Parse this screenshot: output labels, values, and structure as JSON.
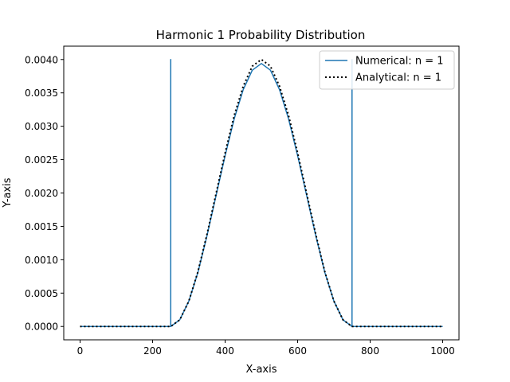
{
  "chart_data": {
    "type": "line",
    "title": "Harmonic 1 Probability Distribution",
    "xlabel": "X-axis",
    "ylabel": "Y-axis",
    "xlim": [
      -45,
      1045
    ],
    "ylim": [
      -0.0002,
      0.0042
    ],
    "grid": false,
    "legend_position": "top-right",
    "x_ticks": [
      0,
      200,
      400,
      600,
      800,
      1000
    ],
    "x_tick_labels": [
      "0",
      "200",
      "400",
      "600",
      "800",
      "1000"
    ],
    "y_ticks": [
      0,
      0.0005,
      0.001,
      0.0015,
      0.002,
      0.0025,
      0.003,
      0.0035,
      0.004
    ],
    "y_tick_labels": [
      "0.0000",
      "0.0005",
      "0.0010",
      "0.0015",
      "0.0020",
      "0.0025",
      "0.0030",
      "0.0035",
      "0.0040"
    ],
    "series": [
      {
        "name": "Numerical: n = 1",
        "color": "#1f77b4",
        "style": "solid",
        "x": [
          0,
          250,
          250,
          250,
          275,
          300,
          325,
          350,
          375,
          400,
          425,
          450,
          475,
          500,
          525,
          550,
          575,
          600,
          625,
          650,
          675,
          700,
          725,
          750,
          750,
          750,
          1000
        ],
        "y": [
          0,
          0,
          0.004,
          0,
          0.0001,
          0.00038,
          0.00081,
          0.00136,
          0.00196,
          0.00256,
          0.00311,
          0.00355,
          0.00384,
          0.00394,
          0.00384,
          0.00355,
          0.00311,
          0.00256,
          0.00196,
          0.00136,
          0.00081,
          0.00038,
          0.0001,
          0,
          0.004,
          0,
          0
        ]
      },
      {
        "name": "Analytical: n = 1",
        "color": "#000000",
        "style": "dotted",
        "x": [
          0,
          250,
          275,
          300,
          325,
          350,
          375,
          400,
          425,
          450,
          475,
          500,
          525,
          550,
          575,
          600,
          625,
          650,
          675,
          700,
          725,
          750,
          1000
        ],
        "y": [
          0,
          0,
          0.0001,
          0.00038,
          0.00082,
          0.00138,
          0.00199,
          0.0026,
          0.00316,
          0.0036,
          0.0039,
          0.004,
          0.0039,
          0.0036,
          0.00316,
          0.0026,
          0.00199,
          0.00138,
          0.00082,
          0.00038,
          0.0001,
          0,
          0
        ]
      }
    ]
  }
}
